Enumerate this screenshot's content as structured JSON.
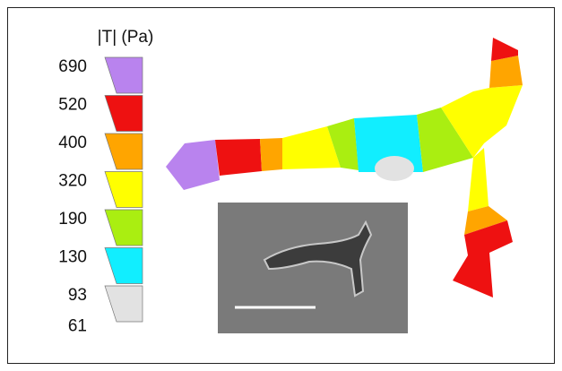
{
  "legend": {
    "title": "|T| (Pa)",
    "labels": [
      690,
      520,
      400,
      320,
      190,
      130,
      93,
      61
    ],
    "colors": [
      "#b983ee",
      "#ee1111",
      "#ffa500",
      "#ffff00",
      "#aaee11",
      "#11eeff",
      "#e2e2e2"
    ]
  }
}
